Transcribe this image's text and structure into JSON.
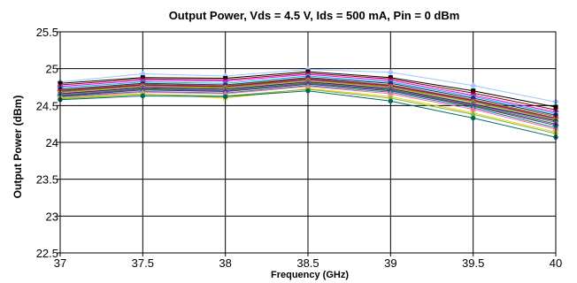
{
  "chart_data": {
    "type": "line",
    "title": "Output Power, Vds = 4.5 V, Ids = 500 mA, Pin = 0 dBm",
    "xlabel": "Frequency (GHz)",
    "ylabel": "Output Power (dBm)",
    "x": [
      37,
      37.5,
      38,
      38.5,
      39,
      39.5,
      40
    ],
    "xlim": [
      37,
      40
    ],
    "ylim": [
      22.5,
      25.5
    ],
    "xticks": [
      "37",
      "37.5",
      "38",
      "38.5",
      "39",
      "39.5",
      "40"
    ],
    "yticks": [
      "22.5",
      "23",
      "23.5",
      "24",
      "24.5",
      "25",
      "25.5"
    ],
    "grid": true,
    "legend": "none",
    "series": [
      {
        "color": "#9ec5ff",
        "values": [
          24.82,
          24.93,
          24.9,
          24.99,
          24.95,
          24.77,
          24.55
        ]
      },
      {
        "color": "#000000",
        "values": [
          24.8,
          24.88,
          24.87,
          24.96,
          24.88,
          24.7,
          24.48
        ]
      },
      {
        "color": "#8b0000",
        "values": [
          24.78,
          24.86,
          24.85,
          24.94,
          24.86,
          24.67,
          24.44
        ]
      },
      {
        "color": "#ff00ff",
        "values": [
          24.76,
          24.84,
          24.83,
          24.92,
          24.84,
          24.64,
          24.41
        ]
      },
      {
        "color": "#00bcd4",
        "values": [
          24.74,
          24.82,
          24.8,
          24.9,
          24.82,
          24.62,
          24.39
        ]
      },
      {
        "color": "#1a237e",
        "values": [
          24.72,
          24.8,
          24.78,
          24.88,
          24.8,
          24.6,
          24.37
        ]
      },
      {
        "color": "#808000",
        "values": [
          24.71,
          24.79,
          24.77,
          24.87,
          24.78,
          24.58,
          24.35
        ]
      },
      {
        "color": "#800080",
        "values": [
          24.7,
          24.78,
          24.76,
          24.86,
          24.77,
          24.57,
          24.33
        ]
      },
      {
        "color": "#d32f2f",
        "values": [
          24.69,
          24.77,
          24.75,
          24.85,
          24.76,
          24.56,
          24.32
        ]
      },
      {
        "color": "#4caf50",
        "values": [
          24.68,
          24.76,
          24.74,
          24.84,
          24.75,
          24.55,
          24.31
        ]
      },
      {
        "color": "#ffa500",
        "values": [
          24.67,
          24.75,
          24.73,
          24.83,
          24.74,
          24.53,
          24.3
        ]
      },
      {
        "color": "#0000cd",
        "values": [
          24.66,
          24.74,
          24.72,
          24.82,
          24.73,
          24.52,
          24.29
        ]
      },
      {
        "color": "#808080",
        "values": [
          24.65,
          24.73,
          24.71,
          24.81,
          24.72,
          24.51,
          24.27
        ]
      },
      {
        "color": "#2e7d32",
        "values": [
          24.64,
          24.72,
          24.7,
          24.8,
          24.71,
          24.5,
          24.25
        ]
      },
      {
        "color": "#6a1b9a",
        "values": [
          24.63,
          24.71,
          24.69,
          24.79,
          24.7,
          24.49,
          24.23
        ]
      },
      {
        "color": "#00897b",
        "values": [
          24.62,
          24.69,
          24.67,
          24.77,
          24.68,
          24.47,
          24.2
        ]
      },
      {
        "color": "#ff69b4",
        "values": [
          24.61,
          24.68,
          24.66,
          24.76,
          24.66,
          24.45,
          24.18
        ]
      },
      {
        "color": "#e6d200",
        "values": [
          24.6,
          24.66,
          24.6,
          24.73,
          24.62,
          24.4,
          24.14
        ]
      },
      {
        "color": "#7cb342",
        "values": [
          24.59,
          24.65,
          24.63,
          24.72,
          24.6,
          24.38,
          24.12
        ]
      },
      {
        "color": "#00695c",
        "values": [
          24.58,
          24.63,
          24.62,
          24.7,
          24.56,
          24.33,
          24.07
        ]
      }
    ]
  }
}
